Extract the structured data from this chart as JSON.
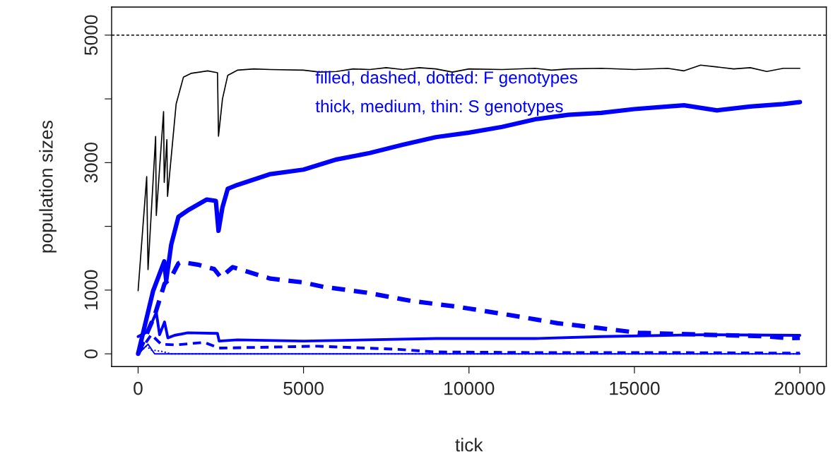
{
  "chart_data": {
    "type": "line",
    "xlabel": "tick",
    "ylabel": "population sizes",
    "xlim": [
      -800,
      20800
    ],
    "ylim": [
      -200,
      5440
    ],
    "xticks": [
      0,
      5000,
      10000,
      15000,
      20000
    ],
    "yticks": [
      0,
      1000,
      {
        "value": 2000,
        "label": null
      },
      3000,
      {
        "value": 4000,
        "label": null
      },
      5000
    ],
    "annotations": [
      "filled, dashed, dotted: F genotypes",
      "thick, medium, thin: S genotypes"
    ],
    "ref_lines": [
      {
        "axis": "y",
        "value": 5000,
        "color": "#000000",
        "line_style": "dashed"
      }
    ],
    "grid": false,
    "legend": false,
    "series": [
      {
        "color": "#000000",
        "line_style": "solid",
        "x": [
          0,
          260,
          300,
          530,
          550,
          770,
          790,
          870,
          890,
          1150,
          1370,
          1600,
          1860,
          2100,
          2400,
          2430,
          2550,
          2710,
          3000,
          3500,
          4000,
          5000,
          5500,
          6000,
          6500,
          7000,
          7500,
          8000,
          8500,
          9000,
          9500,
          10000,
          11000,
          12000,
          12500,
          13000,
          14000,
          15000,
          16000,
          16500,
          17000,
          17500,
          18000,
          18500,
          19000,
          19500,
          20000
        ],
        "values": [
          990,
          2780,
          1320,
          3410,
          2170,
          3800,
          2690,
          3360,
          2470,
          3920,
          4340,
          4400,
          4420,
          4440,
          4410,
          3415,
          4000,
          4370,
          4450,
          4470,
          4460,
          4450,
          4420,
          4430,
          4470,
          4460,
          4490,
          4460,
          4490,
          4470,
          4420,
          4470,
          4460,
          4480,
          4450,
          4470,
          4480,
          4460,
          4480,
          4440,
          4530,
          4500,
          4470,
          4490,
          4430,
          4480,
          4480
        ]
      },
      {
        "color": "#0000ff",
        "line_style": "solid",
        "x": [
          0,
          450,
          790,
          850,
          1000,
          1220,
          1500,
          2070,
          2350,
          2430,
          2550,
          2710,
          3000,
          4000,
          5000,
          6000,
          7000,
          8000,
          9000,
          10000,
          11000,
          12000,
          13000,
          14000,
          15000,
          16000,
          16500,
          17500,
          18500,
          19500,
          20000
        ],
        "values": [
          0,
          980,
          1450,
          1150,
          1710,
          2150,
          2250,
          2420,
          2400,
          1930,
          2300,
          2590,
          2650,
          2820,
          2890,
          3050,
          3150,
          3280,
          3400,
          3470,
          3560,
          3680,
          3750,
          3780,
          3840,
          3880,
          3900,
          3820,
          3880,
          3920,
          3950
        ]
      },
      {
        "color": "#0000ff",
        "line_style": "dashed",
        "x": [
          0,
          500,
          800,
          1000,
          1220,
          1300,
          1800,
          2300,
          2500,
          2860,
          4000,
          5000,
          5610,
          6900,
          8260,
          9630,
          11100,
          12680,
          13850,
          15130,
          16400,
          18950,
          19720,
          20000
        ],
        "values": [
          0,
          600,
          1100,
          1200,
          1420,
          1440,
          1400,
          1330,
          1200,
          1360,
          1180,
          1120,
          1050,
          960,
          830,
          740,
          620,
          480,
          410,
          330,
          310,
          275,
          245,
          250
        ]
      },
      {
        "color": "#0000ff",
        "line_style": "solid",
        "x": [
          0,
          300,
          550,
          650,
          800,
          900,
          1100,
          1500,
          2400,
          2450,
          3000,
          5000,
          9000,
          12000,
          14000,
          17000,
          20000
        ],
        "values": [
          270,
          350,
          650,
          300,
          500,
          250,
          290,
          330,
          320,
          200,
          220,
          200,
          240,
          240,
          270,
          300,
          290
        ]
      },
      {
        "color": "#0000ff",
        "line_style": "dashed",
        "x": [
          0,
          400,
          700,
          1150,
          2000,
          2450,
          5420,
          7870,
          8950,
          12000,
          16000,
          20000
        ],
        "values": [
          0,
          300,
          150,
          140,
          180,
          90,
          120,
          70,
          30,
          20,
          20,
          10
        ]
      },
      {
        "color": "#0000ff",
        "line_style": "solid",
        "x": [
          0,
          300,
          500,
          20000
        ],
        "values": [
          0,
          150,
          0,
          0
        ]
      },
      {
        "color": "#0000ff",
        "line_style": "dotted",
        "x": [
          0,
          250,
          400,
          700,
          1000,
          20000
        ],
        "values": [
          0,
          120,
          60,
          40,
          0,
          0
        ]
      }
    ]
  }
}
